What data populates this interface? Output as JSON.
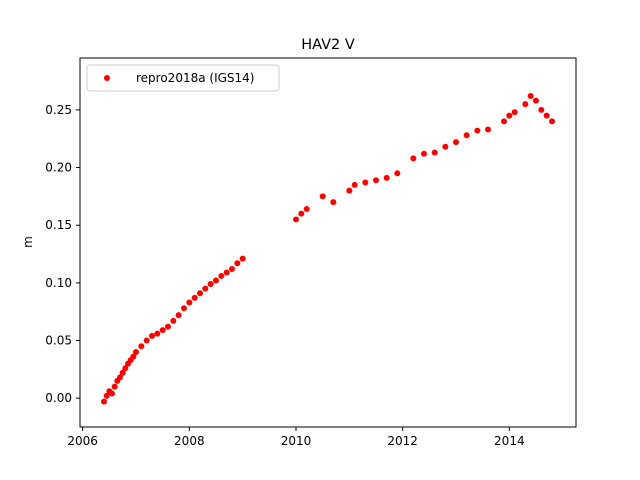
{
  "chart_data": {
    "type": "scatter",
    "title": "HAV2 V",
    "xlabel": "",
    "ylabel": "m",
    "xlim": [
      2005.95,
      2015.25
    ],
    "ylim": [
      -0.025,
      0.295
    ],
    "xticks": [
      2006,
      2008,
      2010,
      2012,
      2014
    ],
    "xtick_labels": [
      "2006",
      "2008",
      "2010",
      "2012",
      "2014"
    ],
    "yticks": [
      0.0,
      0.05,
      0.1,
      0.15,
      0.2,
      0.25
    ],
    "ytick_labels": [
      "0.00",
      "0.05",
      "0.10",
      "0.15",
      "0.20",
      "0.25"
    ],
    "grid": false,
    "legend": {
      "placement": "upper-left",
      "entries": [
        "repro2018a (IGS14)"
      ]
    },
    "series": [
      {
        "name": "repro2018a (IGS14)",
        "color": "#ff0000",
        "marker": "circle",
        "points": [
          [
            2006.4,
            -0.003
          ],
          [
            2006.45,
            0.002
          ],
          [
            2006.5,
            0.006
          ],
          [
            2006.55,
            0.004
          ],
          [
            2006.6,
            0.01
          ],
          [
            2006.65,
            0.015
          ],
          [
            2006.7,
            0.018
          ],
          [
            2006.75,
            0.022
          ],
          [
            2006.8,
            0.026
          ],
          [
            2006.85,
            0.03
          ],
          [
            2006.9,
            0.033
          ],
          [
            2006.95,
            0.036
          ],
          [
            2007.0,
            0.04
          ],
          [
            2007.1,
            0.045
          ],
          [
            2007.2,
            0.05
          ],
          [
            2007.3,
            0.054
          ],
          [
            2007.4,
            0.056
          ],
          [
            2007.5,
            0.059
          ],
          [
            2007.6,
            0.062
          ],
          [
            2007.7,
            0.067
          ],
          [
            2007.8,
            0.072
          ],
          [
            2007.9,
            0.078
          ],
          [
            2008.0,
            0.083
          ],
          [
            2008.1,
            0.087
          ],
          [
            2008.2,
            0.091
          ],
          [
            2008.3,
            0.095
          ],
          [
            2008.4,
            0.099
          ],
          [
            2008.5,
            0.102
          ],
          [
            2008.6,
            0.106
          ],
          [
            2008.7,
            0.109
          ],
          [
            2008.8,
            0.112
          ],
          [
            2008.9,
            0.117
          ],
          [
            2009.0,
            0.121
          ],
          [
            2010.0,
            0.155
          ],
          [
            2010.1,
            0.16
          ],
          [
            2010.2,
            0.164
          ],
          [
            2010.5,
            0.175
          ],
          [
            2010.7,
            0.17
          ],
          [
            2011.0,
            0.18
          ],
          [
            2011.1,
            0.185
          ],
          [
            2011.3,
            0.187
          ],
          [
            2011.5,
            0.189
          ],
          [
            2011.7,
            0.191
          ],
          [
            2011.9,
            0.195
          ],
          [
            2012.2,
            0.208
          ],
          [
            2012.4,
            0.212
          ],
          [
            2012.6,
            0.213
          ],
          [
            2012.8,
            0.218
          ],
          [
            2013.0,
            0.222
          ],
          [
            2013.2,
            0.228
          ],
          [
            2013.4,
            0.232
          ],
          [
            2013.6,
            0.233
          ],
          [
            2013.9,
            0.24
          ],
          [
            2014.0,
            0.245
          ],
          [
            2014.1,
            0.248
          ],
          [
            2014.3,
            0.255
          ],
          [
            2014.4,
            0.262
          ],
          [
            2014.5,
            0.258
          ],
          [
            2014.6,
            0.25
          ],
          [
            2014.7,
            0.245
          ],
          [
            2014.8,
            0.24
          ]
        ]
      }
    ]
  }
}
